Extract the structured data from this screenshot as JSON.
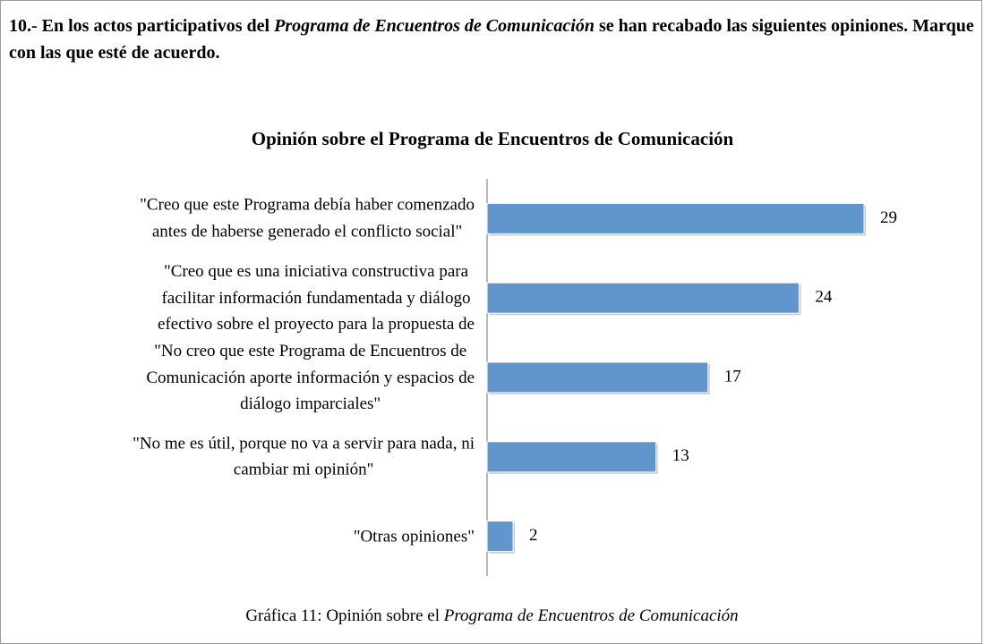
{
  "question": [
    "10.- En los actos participativos del ",
    "Programa de Encuentros de Comunicación",
    " se han recabado las siguientes opiniones. Marque con las que esté de acuerdo."
  ],
  "caption": [
    "Gráfica 11: Opinión sobre el ",
    "Programa de Encuentros de Comunicación"
  ],
  "chart_data": {
    "type": "bar",
    "orientation": "horizontal",
    "title": "Opinión sobre el Programa de Encuentros de Comunicación",
    "categories": [
      "\"Creo que este Programa debía haber comenzado\nantes de haberse generado el conflicto social\"",
      "\"Creo que es una iniciativa constructiva para\nfacilitar información fundamentada y diálogo\nefectivo sobre el proyecto para la propuesta de",
      "\"No creo que este Programa de Encuentros de\nComunicación aporte información y espacios de\ndiálogo imparciales\"",
      "\"No me es útil, porque no va a servir para nada, ni\ncambiar mi opinión\"",
      "\"Otras opiniones\""
    ],
    "values": [
      29,
      24,
      17,
      13,
      2
    ],
    "color": "#6096cc",
    "xlim": [
      0,
      29
    ]
  }
}
